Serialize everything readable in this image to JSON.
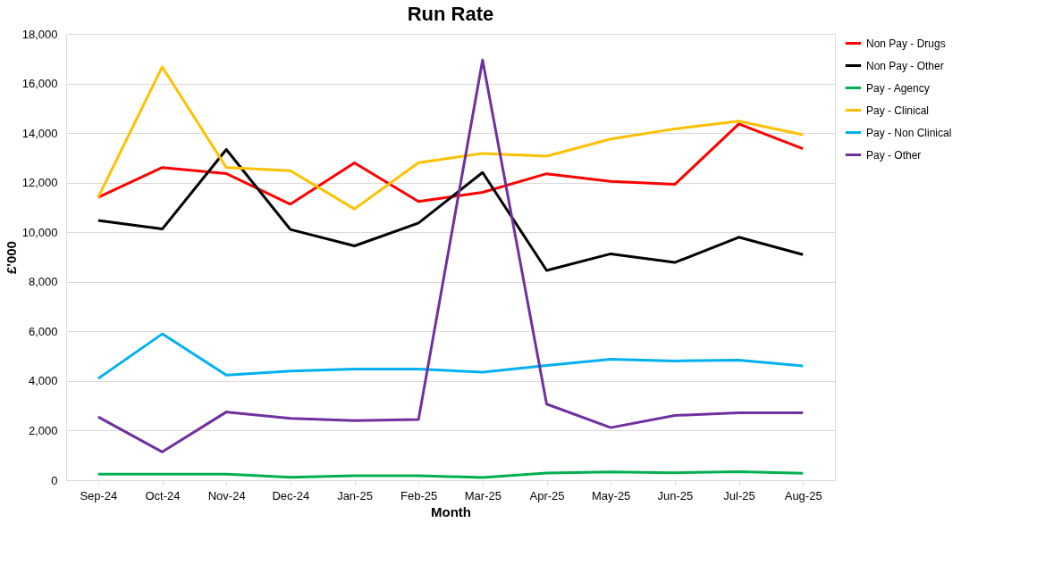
{
  "chart_data": {
    "type": "line",
    "title": "Run Rate",
    "xlabel": "Month",
    "ylabel": "£'000",
    "categories": [
      "Sep-24",
      "Oct-24",
      "Nov-24",
      "Dec-24",
      "Jan-25",
      "Feb-25",
      "Mar-25",
      "Apr-25",
      "May-25",
      "Jun-25",
      "Jul-25",
      "Aug-25"
    ],
    "series": [
      {
        "name": "Non Pay - Drugs",
        "color": "#ff0000",
        "values": [
          11410,
          12610,
          12370,
          11130,
          12800,
          11240,
          11610,
          12360,
          12050,
          11930,
          14370,
          13370
        ]
      },
      {
        "name": "Non Pay - Other",
        "color": "#000000",
        "values": [
          10480,
          10130,
          13340,
          10110,
          9450,
          10370,
          12410,
          8460,
          9130,
          8780,
          9800,
          9100
        ]
      },
      {
        "name": "Pay - Agency",
        "color": "#00b050",
        "values": [
          240,
          240,
          240,
          120,
          180,
          180,
          110,
          290,
          330,
          300,
          340,
          280
        ]
      },
      {
        "name": "Pay - Clinical",
        "color": "#ffc000",
        "values": [
          11410,
          16670,
          12610,
          12480,
          10940,
          12810,
          13180,
          13070,
          13760,
          14170,
          14480,
          13930
        ]
      },
      {
        "name": "Pay - Non Clinical",
        "color": "#00b0f0",
        "values": [
          4100,
          5900,
          4240,
          4400,
          4480,
          4480,
          4360,
          4630,
          4880,
          4810,
          4840,
          4610
        ]
      },
      {
        "name": "Pay - Other",
        "color": "#7030a0",
        "values": [
          2550,
          1140,
          2750,
          2490,
          2400,
          2450,
          16950,
          3070,
          2120,
          2610,
          2720,
          2720
        ]
      }
    ],
    "ylim": [
      0,
      18000
    ],
    "yticks": [
      0,
      {
        "value": 2000,
        "label": "2,000"
      },
      {
        "value": 4000,
        "label": "4,000"
      },
      {
        "value": 6000,
        "label": "6,000"
      },
      {
        "value": 8000,
        "label": "8,000"
      },
      {
        "value": 10000,
        "label": "10,000"
      },
      {
        "value": 12000,
        "label": "12,000"
      },
      {
        "value": 14000,
        "label": "14,000"
      },
      {
        "value": 16000,
        "label": "16,000"
      },
      {
        "value": 18000,
        "label": "18,000"
      }
    ],
    "grid": "y",
    "legend": "right",
    "marker": "none",
    "line_style": "solid"
  }
}
